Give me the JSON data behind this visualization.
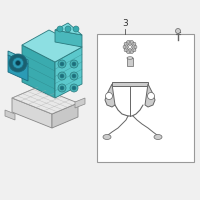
{
  "bg_color": "#f0f0f0",
  "hydraulic_fill": "#5bc8cc",
  "hydraulic_top": "#8ddfe2",
  "hydraulic_side": "#3aabaf",
  "hydraulic_edge": "#2a7a7e",
  "motor_fill": "#2b9bb5",
  "motor_edge": "#1a6a7e",
  "ecu_fill": "#d8d8d8",
  "ecu_top": "#e8e8e8",
  "ecu_edge": "#888888",
  "part_fill": "#cccccc",
  "part_edge": "#666666",
  "box_fill": "#ffffff",
  "box_edge": "#999999",
  "text_color": "#333333",
  "label_3": "3",
  "label_fontsize": 6.5
}
